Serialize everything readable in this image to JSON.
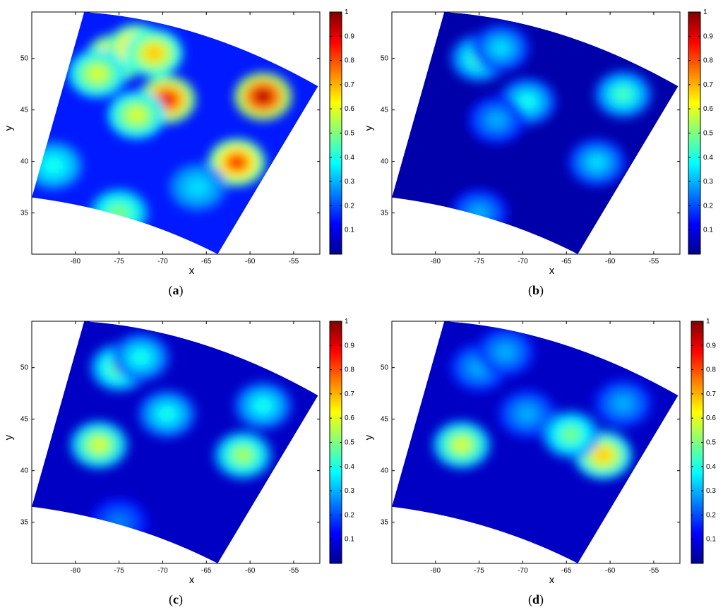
{
  "colormap": {
    "name": "jet",
    "stops": [
      "#00008f",
      "#0000ff",
      "#00ffff",
      "#ffff00",
      "#ff0000",
      "#800000"
    ]
  },
  "chart_data": [
    {
      "type": "heatmap",
      "panel_label": "a",
      "xlabel": "x",
      "ylabel": "y",
      "xlim": [
        -85,
        -52
      ],
      "ylim": [
        31,
        54.5
      ],
      "xticks": [
        -80,
        -75,
        -70,
        -65,
        -60,
        -55
      ],
      "yticks": [
        35,
        40,
        45,
        50
      ],
      "colorbar": {
        "range": [
          0,
          1
        ],
        "ticks": [
          0.1,
          0.2,
          0.3,
          0.4,
          0.5,
          0.6,
          0.7,
          0.8,
          0.9,
          1
        ]
      },
      "domain_corners": {
        "top_left": [
          -79,
          54.5
        ],
        "top_right": [
          -52.2,
          47.3
        ],
        "bottom_right": [
          -63.7,
          31
        ],
        "bottom_left": [
          -85,
          36.5
        ]
      },
      "background_value": 0.15,
      "hotspots": [
        {
          "x": -75.5,
          "y": 50.0,
          "value": 0.85
        },
        {
          "x": -73.0,
          "y": 51.0,
          "value": 0.8
        },
        {
          "x": -71.0,
          "y": 50.5,
          "value": 0.7
        },
        {
          "x": -77.5,
          "y": 48.5,
          "value": 0.6
        },
        {
          "x": -69.5,
          "y": 46.0,
          "value": 0.9
        },
        {
          "x": -73.0,
          "y": 44.5,
          "value": 0.6
        },
        {
          "x": -58.5,
          "y": 46.3,
          "value": 0.98
        },
        {
          "x": -61.5,
          "y": 39.9,
          "value": 0.85
        },
        {
          "x": -82.5,
          "y": 39.6,
          "value": 0.4
        },
        {
          "x": -75.0,
          "y": 35.0,
          "value": 0.5
        },
        {
          "x": -66.0,
          "y": 37.5,
          "value": 0.35
        }
      ]
    },
    {
      "type": "heatmap",
      "panel_label": "b",
      "xlabel": "x",
      "ylabel": "y",
      "xlim": [
        -85,
        -52
      ],
      "ylim": [
        31,
        54.5
      ],
      "xticks": [
        -80,
        -75,
        -70,
        -65,
        -60,
        -55
      ],
      "yticks": [
        35,
        40,
        45,
        50
      ],
      "colorbar": {
        "range": [
          0,
          1
        ],
        "ticks": [
          0.1,
          0.2,
          0.3,
          0.4,
          0.5,
          0.6,
          0.7,
          0.8,
          0.9,
          1
        ]
      },
      "domain_corners": {
        "top_left": [
          -79,
          54.5
        ],
        "top_right": [
          -52.2,
          47.3
        ],
        "bottom_right": [
          -63.7,
          31
        ],
        "bottom_left": [
          -85,
          36.5
        ]
      },
      "background_value": 0.03,
      "hotspots": [
        {
          "x": -75.0,
          "y": 50.0,
          "value": 0.45
        },
        {
          "x": -72.5,
          "y": 51.0,
          "value": 0.35
        },
        {
          "x": -69.5,
          "y": 45.8,
          "value": 0.4
        },
        {
          "x": -73.0,
          "y": 44.0,
          "value": 0.3
        },
        {
          "x": -58.5,
          "y": 46.5,
          "value": 0.45
        },
        {
          "x": -61.5,
          "y": 39.9,
          "value": 0.35
        },
        {
          "x": -75.0,
          "y": 35.0,
          "value": 0.3
        }
      ]
    },
    {
      "type": "heatmap",
      "panel_label": "c",
      "xlabel": "x",
      "ylabel": "y",
      "xlim": [
        -85,
        -52
      ],
      "ylim": [
        31,
        54.5
      ],
      "xticks": [
        -80,
        -75,
        -70,
        -65,
        -60,
        -55
      ],
      "yticks": [
        35,
        40,
        45,
        50
      ],
      "colorbar": {
        "range": [
          0,
          1
        ],
        "ticks": [
          0.1,
          0.2,
          0.3,
          0.4,
          0.5,
          0.6,
          0.7,
          0.8,
          0.9,
          1
        ]
      },
      "domain_corners": {
        "top_left": [
          -79,
          54.5
        ],
        "top_right": [
          -52.2,
          47.3
        ],
        "bottom_right": [
          -63.7,
          31
        ],
        "bottom_left": [
          -85,
          36.5
        ]
      },
      "background_value": 0.06,
      "hotspots": [
        {
          "x": -75.0,
          "y": 50.0,
          "value": 0.5
        },
        {
          "x": -72.5,
          "y": 51.0,
          "value": 0.4
        },
        {
          "x": -69.5,
          "y": 45.5,
          "value": 0.4
        },
        {
          "x": -77.3,
          "y": 42.5,
          "value": 0.6
        },
        {
          "x": -58.5,
          "y": 46.3,
          "value": 0.4
        },
        {
          "x": -60.8,
          "y": 41.5,
          "value": 0.55
        },
        {
          "x": -75.0,
          "y": 35.0,
          "value": 0.25
        }
      ]
    },
    {
      "type": "heatmap",
      "panel_label": "d",
      "xlabel": "x",
      "ylabel": "y",
      "xlim": [
        -85,
        -52
      ],
      "ylim": [
        31,
        54.5
      ],
      "xticks": [
        -80,
        -75,
        -70,
        -65,
        -60,
        -55
      ],
      "yticks": [
        35,
        40,
        45,
        50
      ],
      "colorbar": {
        "range": [
          0,
          1
        ],
        "ticks": [
          0.1,
          0.2,
          0.3,
          0.4,
          0.5,
          0.6,
          0.7,
          0.8,
          0.9,
          1
        ]
      },
      "domain_corners": {
        "top_left": [
          -79,
          54.5
        ],
        "top_right": [
          -52.2,
          47.3
        ],
        "bottom_right": [
          -63.7,
          31
        ],
        "bottom_left": [
          -85,
          36.5
        ]
      },
      "background_value": 0.06,
      "hotspots": [
        {
          "x": -75.0,
          "y": 50.0,
          "value": 0.3
        },
        {
          "x": -72.0,
          "y": 51.5,
          "value": 0.3
        },
        {
          "x": -69.5,
          "y": 45.5,
          "value": 0.3
        },
        {
          "x": -77.0,
          "y": 42.5,
          "value": 0.6
        },
        {
          "x": -58.5,
          "y": 46.5,
          "value": 0.3
        },
        {
          "x": -60.8,
          "y": 41.5,
          "value": 0.7
        },
        {
          "x": -64.5,
          "y": 43.5,
          "value": 0.5
        }
      ]
    }
  ]
}
